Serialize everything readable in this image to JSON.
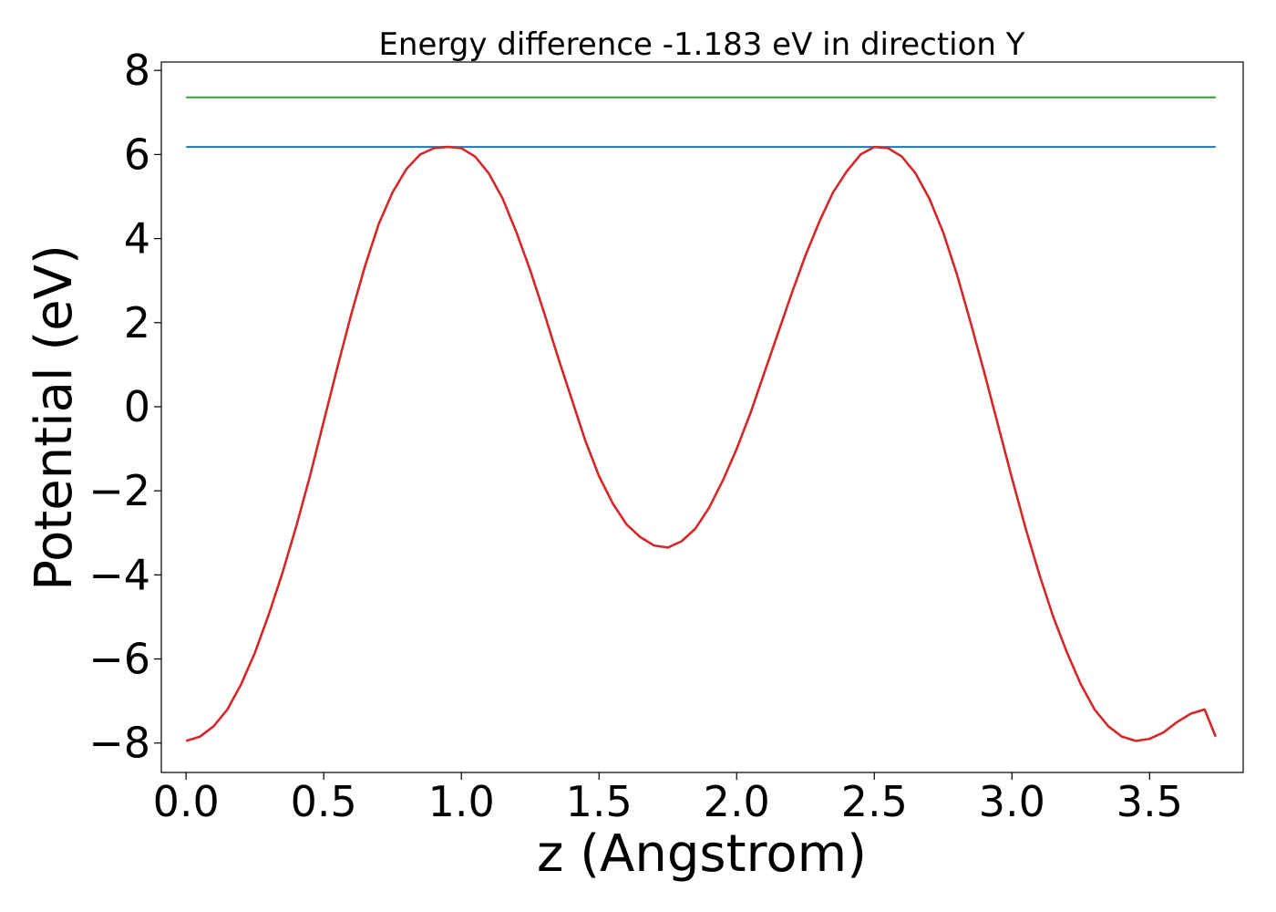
{
  "chart_data": {
    "type": "line",
    "title": "Energy difference -1.183 eV in direction Y",
    "xlabel": "z (Angstrom)",
    "ylabel": "Potential (eV)",
    "xlim": [
      -0.09,
      3.84
    ],
    "ylim": [
      -8.7,
      8.2
    ],
    "xticks": [
      0.0,
      0.5,
      1.0,
      1.5,
      2.0,
      2.5,
      3.0,
      3.5
    ],
    "xtick_labels": [
      "0.0",
      "0.5",
      "1.0",
      "1.5",
      "2.0",
      "2.5",
      "3.0",
      "3.5"
    ],
    "yticks": [
      -8,
      -6,
      -4,
      -2,
      0,
      2,
      4,
      6,
      8
    ],
    "ytick_labels": [
      "−8",
      "−6",
      "−4",
      "−2",
      "0",
      "2",
      "4",
      "6",
      "8"
    ],
    "grid": false,
    "series": [
      {
        "color": "#2ca02c",
        "x": [
          0.0,
          3.74
        ],
        "y": [
          7.36,
          7.36
        ]
      },
      {
        "color": "#1f77b4",
        "x": [
          0.0,
          3.74
        ],
        "y": [
          6.18,
          6.18
        ]
      },
      {
        "color": "#d62728",
        "x": [
          0.0,
          0.05,
          0.1,
          0.15,
          0.2,
          0.25,
          0.3,
          0.35,
          0.4,
          0.45,
          0.5,
          0.55,
          0.6,
          0.65,
          0.7,
          0.75,
          0.8,
          0.85,
          0.9,
          0.95,
          1.0,
          1.05,
          1.1,
          1.15,
          1.2,
          1.25,
          1.3,
          1.35,
          1.4,
          1.45,
          1.5,
          1.55,
          1.6,
          1.65,
          1.7,
          1.75,
          1.8,
          1.85,
          1.9,
          1.95,
          2.0,
          2.05,
          2.1,
          2.15,
          2.2,
          2.25,
          2.3,
          2.35,
          2.4,
          2.45,
          2.5,
          2.55,
          2.6,
          2.65,
          2.7,
          2.75,
          2.8,
          2.85,
          2.9,
          2.95,
          3.0,
          3.05,
          3.1,
          3.15,
          3.2,
          3.25,
          3.3,
          3.35,
          3.4,
          3.45,
          3.5,
          3.55,
          3.6,
          3.65,
          3.7,
          3.74
        ],
        "y": [
          -7.95,
          -7.85,
          -7.6,
          -7.2,
          -6.6,
          -5.85,
          -4.95,
          -3.95,
          -2.85,
          -1.65,
          -0.35,
          0.95,
          2.2,
          3.35,
          4.35,
          5.1,
          5.65,
          6.0,
          6.15,
          6.18,
          6.15,
          5.95,
          5.55,
          4.95,
          4.15,
          3.25,
          2.25,
          1.2,
          0.2,
          -0.8,
          -1.65,
          -2.3,
          -2.8,
          -3.1,
          -3.3,
          -3.35,
          -3.2,
          -2.9,
          -2.4,
          -1.75,
          -1.0,
          -0.15,
          0.8,
          1.75,
          2.7,
          3.6,
          4.4,
          5.1,
          5.6,
          6.0,
          6.18,
          6.15,
          5.95,
          5.55,
          4.95,
          4.15,
          3.15,
          2.0,
          0.8,
          -0.45,
          -1.7,
          -2.9,
          -4.0,
          -5.0,
          -5.85,
          -6.6,
          -7.2,
          -7.6,
          -7.85,
          -7.95,
          -7.9,
          -7.75,
          -7.5,
          -7.3,
          -7.2,
          -7.85
        ]
      }
    ]
  }
}
